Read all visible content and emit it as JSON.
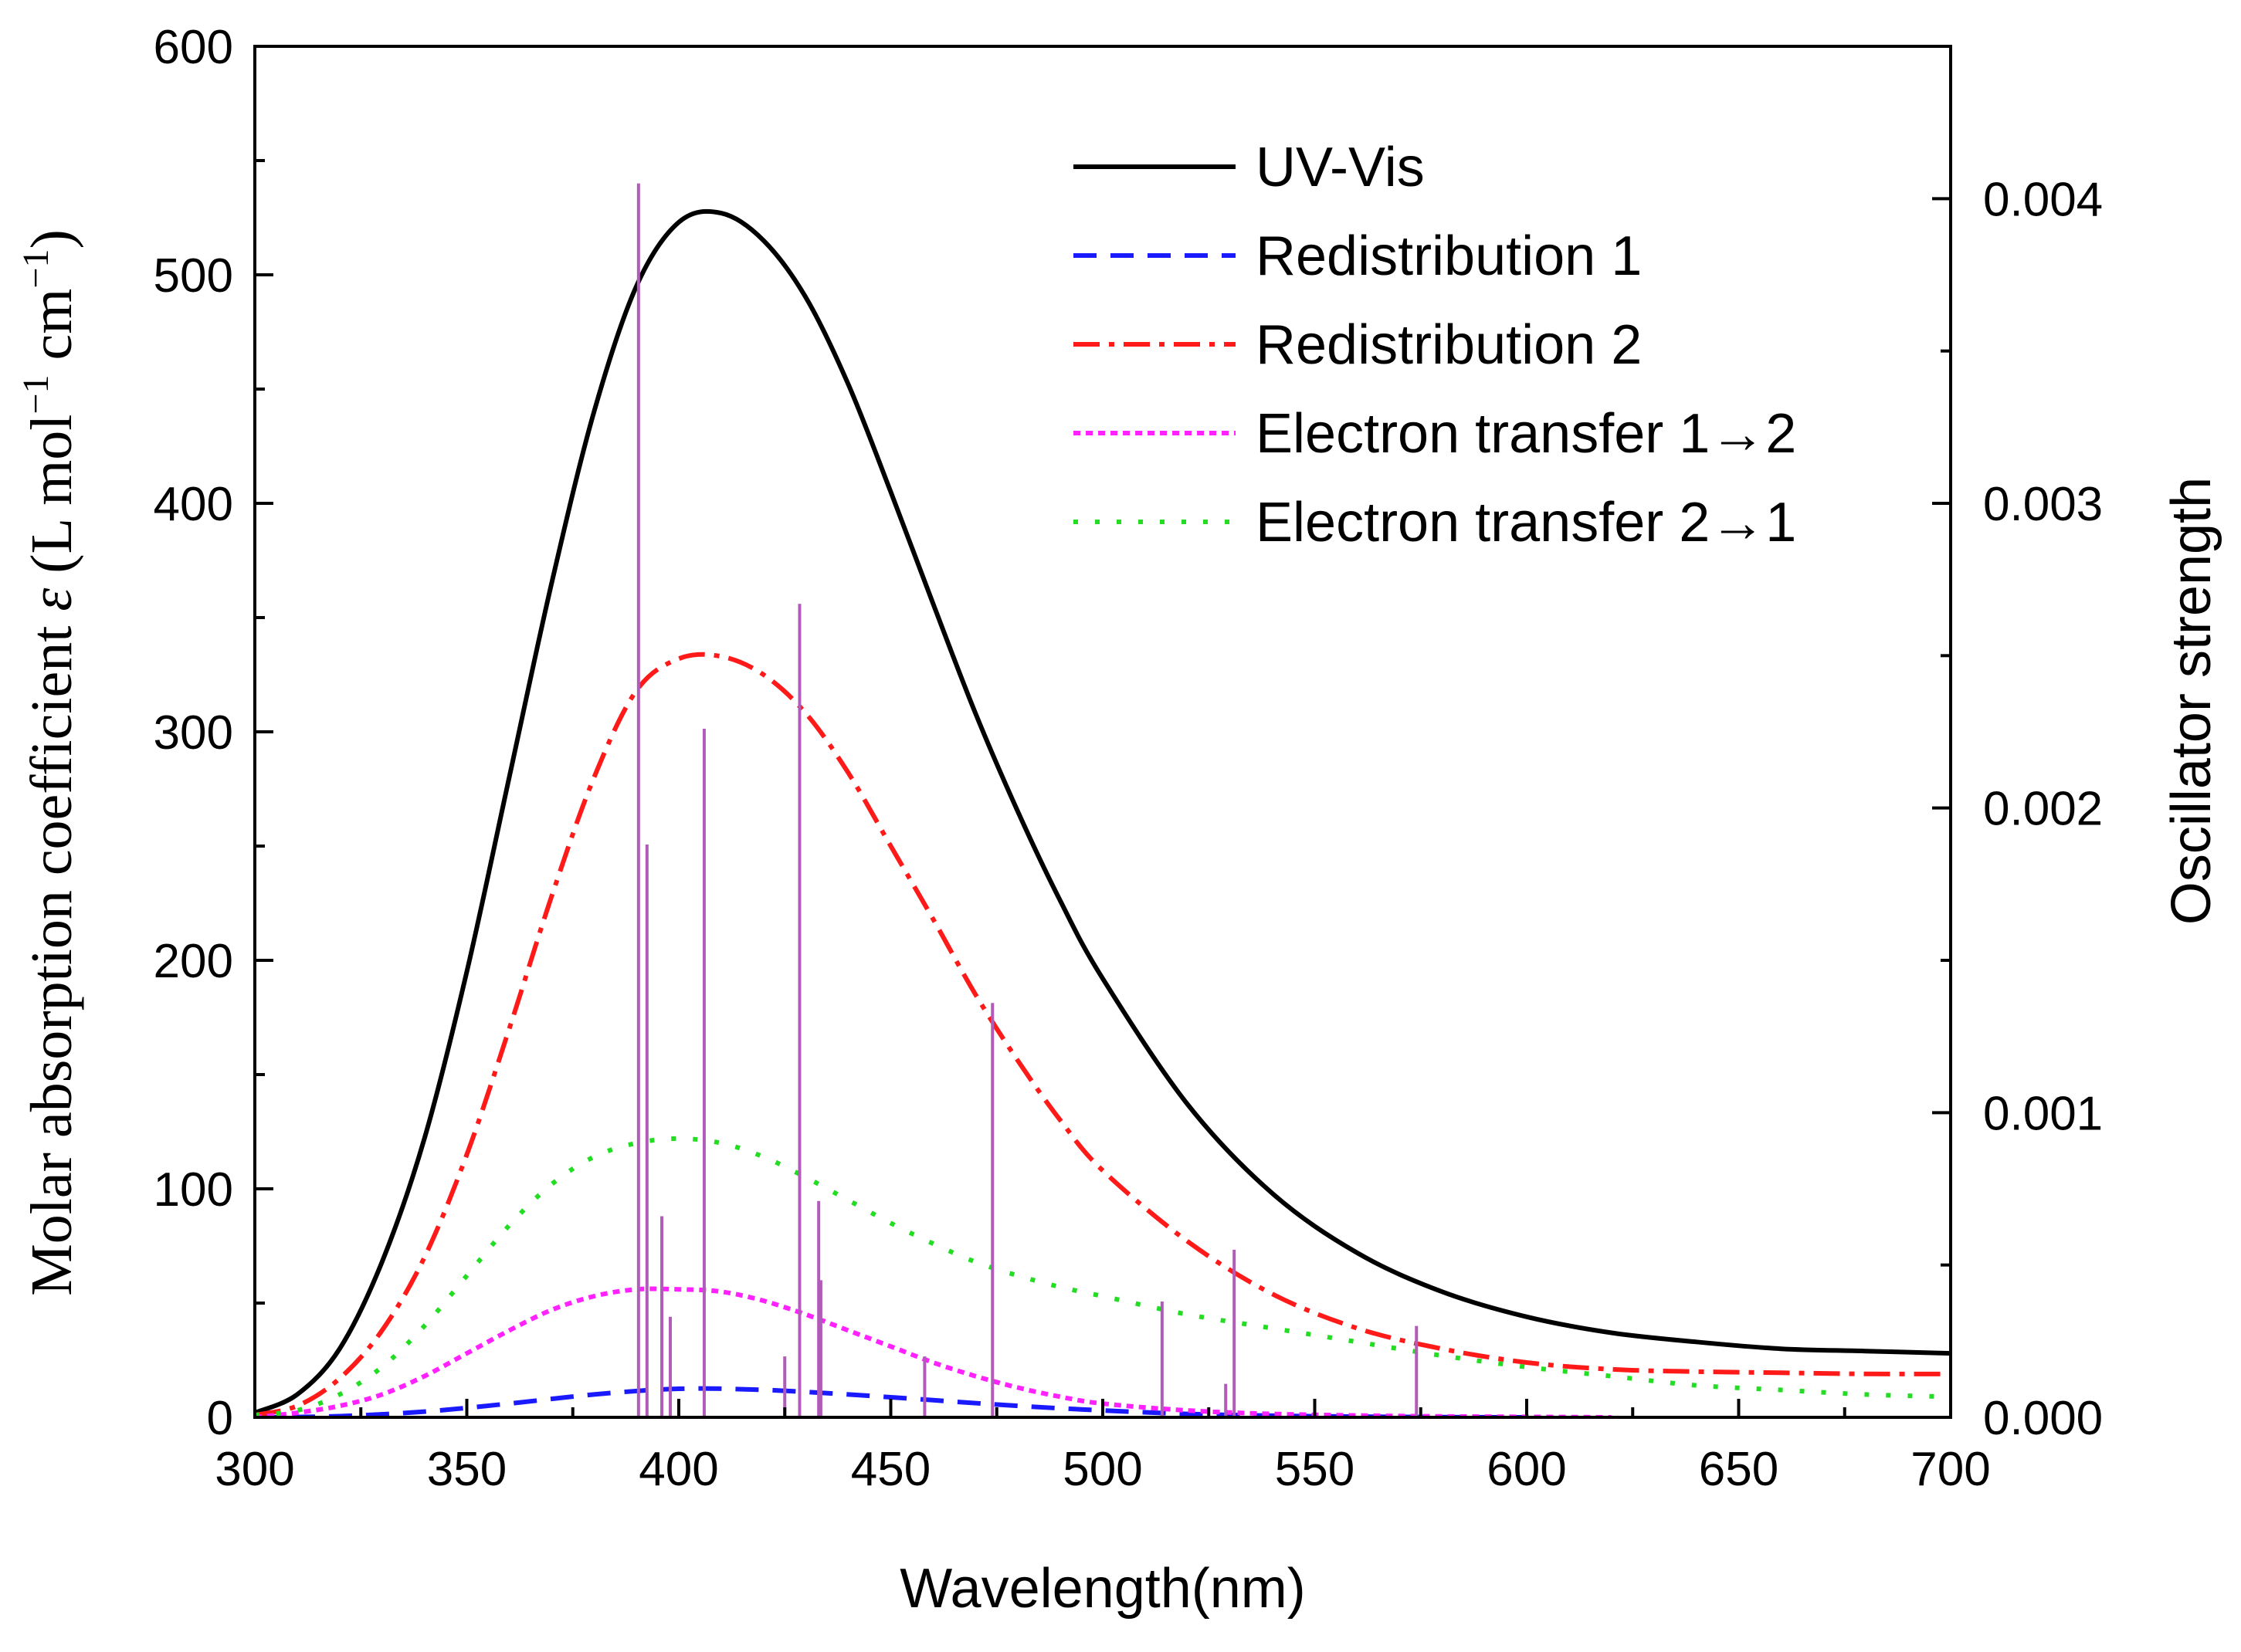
{
  "chart_data": {
    "type": "line",
    "xlabel": "Wavelength(nm)",
    "ylabel": {
      "prefix": "Molar absorption coefficient ",
      "symbol": "ε",
      "unit_open": " (L mol",
      "sup1": "−1",
      "unit_mid": " cm",
      "sup2": "−1",
      "unit_close": ")"
    },
    "y2label": "Oscillator strength",
    "xlim": [
      300,
      700
    ],
    "ylim": [
      0,
      600
    ],
    "y2lim": [
      0,
      0.0045
    ],
    "x_ticks": [
      "300",
      "350",
      "400",
      "450",
      "500",
      "550",
      "600",
      "650",
      "700"
    ],
    "y_ticks": [
      "0",
      "100",
      "200",
      "300",
      "400",
      "500",
      "600"
    ],
    "y2_ticks": [
      "0.000",
      "0.001",
      "0.002",
      "0.003",
      "0.004"
    ],
    "legend_position": "top-right",
    "series": [
      {
        "name": "UV-Vis",
        "color": "#000000",
        "dash": "solid",
        "x": [
          300,
          310,
          320,
          330,
          340,
          350,
          360,
          370,
          380,
          390,
          400,
          410,
          420,
          430,
          440,
          450,
          460,
          470,
          480,
          490,
          500,
          520,
          540,
          560,
          580,
          600,
          620,
          640,
          660,
          680,
          700
        ],
        "y": [
          2,
          10,
          30,
          68,
          122,
          195,
          280,
          365,
          440,
          495,
          523,
          527,
          515,
          490,
          452,
          405,
          356,
          308,
          265,
          226,
          192,
          137,
          98,
          72,
          55,
          44,
          37,
          33,
          30,
          29,
          28
        ]
      },
      {
        "name": "Redistribution 1",
        "color": "#1a1aff",
        "dash": "dashed",
        "x": [
          300,
          320,
          340,
          360,
          380,
          400,
          420,
          440,
          460,
          480,
          500,
          520,
          540,
          560,
          580,
          600
        ],
        "y": [
          0,
          0.5,
          2.5,
          6,
          10,
          12.5,
          12,
          10,
          7.5,
          5,
          3,
          1.5,
          0.7,
          0.3,
          0.1,
          0
        ]
      },
      {
        "name": "Redistribution 2",
        "color": "#ff1a1a",
        "dash": "dashdot",
        "x": [
          300,
          310,
          320,
          330,
          340,
          350,
          360,
          370,
          380,
          390,
          400,
          410,
          420,
          430,
          440,
          450,
          460,
          470,
          480,
          490,
          500,
          520,
          540,
          560,
          580,
          600,
          620,
          640,
          660,
          680,
          700
        ],
        "y": [
          1,
          5,
          17,
          38,
          70,
          115,
          170,
          228,
          280,
          318,
          332,
          333,
          325,
          308,
          282,
          250,
          218,
          185,
          156,
          130,
          108,
          77,
          54,
          39,
          30,
          24,
          21,
          20,
          19.5,
          19,
          19
        ]
      },
      {
        "name": "Electron transfer 1→2",
        "color": "#ff22ff",
        "dash": "dotted-fine",
        "x": [
          300,
          310,
          320,
          330,
          340,
          350,
          360,
          370,
          380,
          390,
          400,
          410,
          420,
          430,
          440,
          450,
          460,
          470,
          480,
          490,
          500,
          520,
          540,
          560,
          580,
          600,
          620
        ],
        "y": [
          0,
          2,
          5,
          10,
          18,
          28,
          38,
          47,
          53,
          56,
          56,
          55,
          51,
          45,
          38,
          31,
          24,
          18,
          13,
          9,
          6,
          3,
          1.5,
          0.8,
          0.4,
          0.2,
          0
        ]
      },
      {
        "name": "Electron transfer 2→1",
        "color": "#22dd22",
        "dash": "dotted",
        "x": [
          300,
          310,
          320,
          330,
          340,
          350,
          360,
          370,
          380,
          390,
          400,
          410,
          420,
          430,
          440,
          450,
          460,
          470,
          480,
          490,
          500,
          520,
          540,
          560,
          580,
          600,
          620,
          640,
          660,
          680,
          700
        ],
        "y": [
          1,
          3,
          10,
          22,
          40,
          62,
          84,
          102,
          114,
          120,
          122,
          120,
          114,
          105,
          95,
          85,
          76,
          68,
          62,
          57,
          53,
          45,
          39,
          33,
          27,
          22,
          18,
          14,
          12,
          10,
          9
        ]
      }
    ],
    "sticks": {
      "name": "Oscillator strength",
      "color": "#b05cb8",
      "x": [
        390.5,
        392.5,
        396,
        398,
        406,
        425,
        428.5,
        433,
        433.5,
        458,
        474,
        514,
        529,
        531,
        574
      ],
      "y": [
        0.00405,
        0.00188,
        0.00066,
        0.00033,
        0.00226,
        0.0002,
        0.00267,
        0.00071,
        0.00045,
        0.0002,
        0.00136,
        0.00038,
        0.00011,
        0.00055,
        0.0003
      ]
    }
  }
}
